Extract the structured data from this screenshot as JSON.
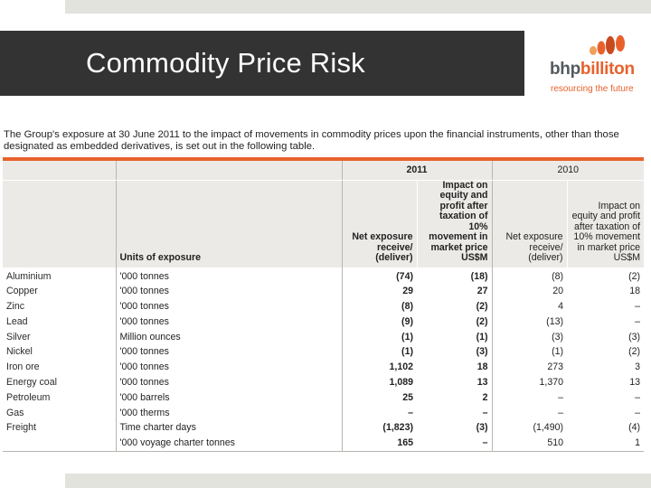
{
  "slide": {
    "title": "Commodity Price Risk"
  },
  "logo": {
    "name_part1": "bhp",
    "name_part2": "billiton",
    "tagline": "resourcing the future"
  },
  "intro_text": "The Group's exposure at 30 June 2011 to the impact of movements in commodity prices upon the financial instruments, other than those designated as embedded derivatives, is set out in the following table.",
  "table": {
    "year_current": "2011",
    "year_prior": "2010",
    "units_header": "Units of exposure",
    "net_exposure_header": "Net exposure receive/ (deliver)",
    "impact_header": "Impact on equity and profit after taxation of 10% movement in market price US$M",
    "rows": [
      {
        "commodity": "Aluminium",
        "units": "'000 tonnes",
        "net_2011": "(74)",
        "impact_2011": "(18)",
        "net_2010": "(8)",
        "impact_2010": "(2)"
      },
      {
        "commodity": "Copper",
        "units": "'000 tonnes",
        "net_2011": "29",
        "impact_2011": "27",
        "net_2010": "20",
        "impact_2010": "18"
      },
      {
        "commodity": "Zinc",
        "units": "'000 tonnes",
        "net_2011": "(8)",
        "impact_2011": "(2)",
        "net_2010": "4",
        "impact_2010": "–"
      },
      {
        "commodity": "Lead",
        "units": "'000 tonnes",
        "net_2011": "(9)",
        "impact_2011": "(2)",
        "net_2010": "(13)",
        "impact_2010": "–"
      },
      {
        "commodity": "Silver",
        "units": "Million ounces",
        "net_2011": "(1)",
        "impact_2011": "(1)",
        "net_2010": "(3)",
        "impact_2010": "(3)"
      },
      {
        "commodity": "Nickel",
        "units": "'000 tonnes",
        "net_2011": "(1)",
        "impact_2011": "(3)",
        "net_2010": "(1)",
        "impact_2010": "(2)"
      },
      {
        "commodity": "Iron ore",
        "units": "'000 tonnes",
        "net_2011": "1,102",
        "impact_2011": "18",
        "net_2010": "273",
        "impact_2010": "3"
      },
      {
        "commodity": "Energy coal",
        "units": "'000 tonnes",
        "net_2011": "1,089",
        "impact_2011": "13",
        "net_2010": "1,370",
        "impact_2010": "13"
      },
      {
        "commodity": "Petroleum",
        "units": "'000 barrels",
        "net_2011": "25",
        "impact_2011": "2",
        "net_2010": "–",
        "impact_2010": "–"
      },
      {
        "commodity": "Gas",
        "units": "'000 therms",
        "net_2011": "–",
        "impact_2011": "–",
        "net_2010": "–",
        "impact_2010": "–"
      },
      {
        "commodity": "Freight",
        "units": "Time charter days",
        "net_2011": "(1,823)",
        "impact_2011": "(3)",
        "net_2010": "(1,490)",
        "impact_2010": "(4)"
      },
      {
        "commodity": "",
        "units": "'000 voyage charter tonnes",
        "net_2011": "165",
        "impact_2011": "–",
        "net_2010": "510",
        "impact_2010": "1"
      }
    ]
  },
  "colors": {
    "title_bar": "#333333",
    "accent_orange": "#e8612c",
    "header_fill": "#eceae7",
    "strip": "#e1e3dc"
  }
}
